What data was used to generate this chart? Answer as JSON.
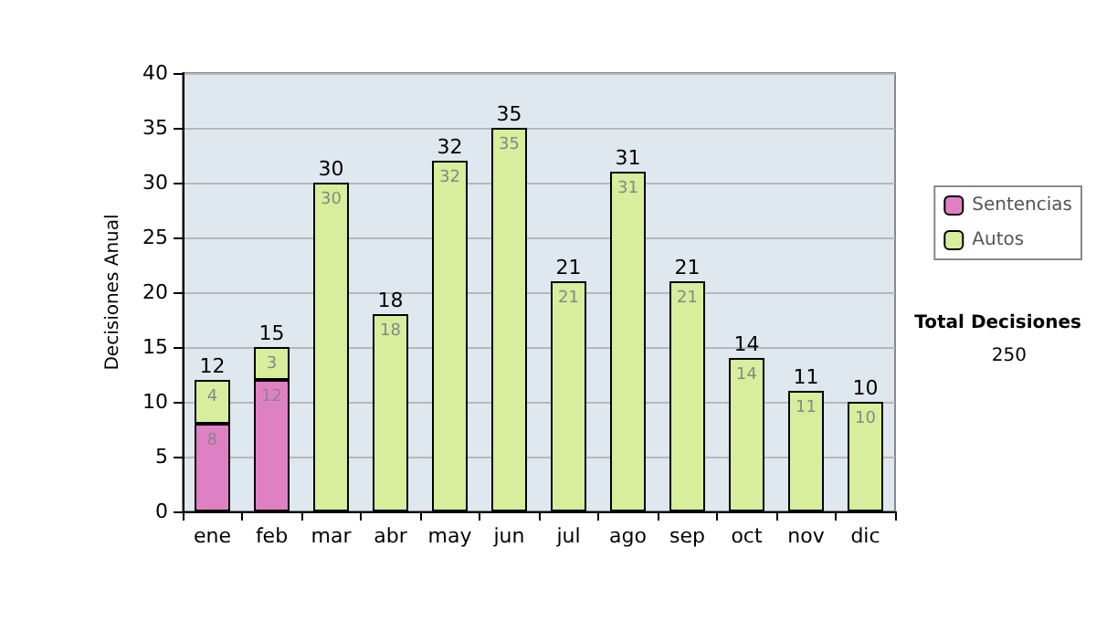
{
  "chart_data": {
    "type": "bar",
    "ylabel": "Decisiones Anual",
    "categories": [
      "ene",
      "feb",
      "mar",
      "abr",
      "may",
      "jun",
      "jul",
      "ago",
      "sep",
      "oct",
      "nov",
      "dic"
    ],
    "series": [
      {
        "name": "Sentencias",
        "color": "#e080c4",
        "values": [
          8,
          12,
          null,
          null,
          null,
          null,
          null,
          null,
          null,
          null,
          null,
          null
        ]
      },
      {
        "name": "Autos",
        "color": "#d8ee9c",
        "values": [
          4,
          3,
          30,
          18,
          32,
          35,
          21,
          31,
          21,
          14,
          11,
          10
        ]
      }
    ],
    "stacked": true,
    "data_labels": true,
    "totals": [
      "12",
      "15",
      "30",
      "18",
      "32",
      "35",
      "21",
      "31",
      "21",
      "14",
      "11",
      "10"
    ],
    "ylim": [
      0,
      40
    ],
    "yticks": [
      0,
      5,
      10,
      15,
      20,
      25,
      30,
      35,
      40
    ],
    "grid": "y",
    "legend": "right",
    "annotations": [
      "Total Decisiones",
      "250"
    ]
  }
}
